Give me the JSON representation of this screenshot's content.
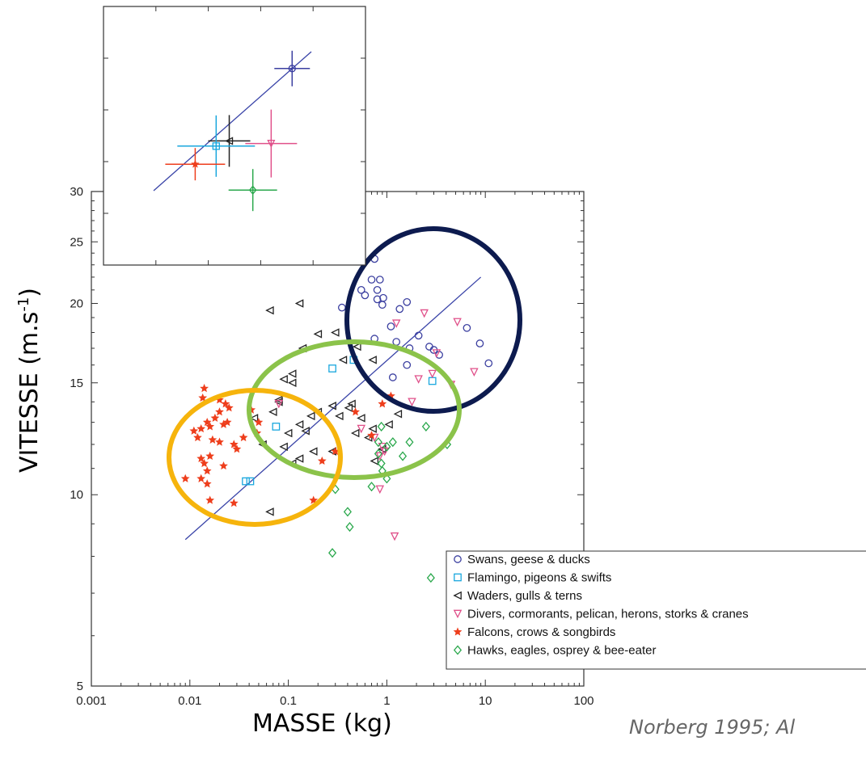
{
  "chart_data": {
    "type": "scatter",
    "xlabel": "MASSE (kg)",
    "ylabel_main": "VITESSE (m.s",
    "ylabel_sup": "-1",
    "ylabel_end": ")",
    "citation": "Norberg 1995; Al",
    "x_scale": "log",
    "y_scale": "log",
    "xlim": [
      0.001,
      100
    ],
    "ylim": [
      5,
      30
    ],
    "x_ticks": [
      {
        "value": 0.001,
        "label": "0.001"
      },
      {
        "value": 0.01,
        "label": "0.01"
      },
      {
        "value": 0.1,
        "label": "0.1"
      },
      {
        "value": 1,
        "label": "1"
      },
      {
        "value": 10,
        "label": "10"
      },
      {
        "value": 100,
        "label": "100"
      }
    ],
    "y_ticks": [
      {
        "value": 5,
        "label": "5"
      },
      {
        "value": 10,
        "label": "10"
      },
      {
        "value": 15,
        "label": "15"
      },
      {
        "value": 20,
        "label": "20"
      },
      {
        "value": 25,
        "label": "25"
      },
      {
        "value": 30,
        "label": "30"
      }
    ],
    "legend_position": "bottom-right",
    "fit_line": {
      "x": [
        0.009,
        9
      ],
      "y": [
        8.5,
        22
      ],
      "color": "#3a44a8"
    },
    "series": [
      {
        "name": "Swans, geese & ducks",
        "marker": "circle",
        "color": "#3b3fa0",
        "points": [
          [
            0.75,
            23.5
          ],
          [
            0.55,
            21
          ],
          [
            0.7,
            21.8
          ],
          [
            0.85,
            21.8
          ],
          [
            0.6,
            20.6
          ],
          [
            0.8,
            20.3
          ],
          [
            0.9,
            19.9
          ],
          [
            0.92,
            20.4
          ],
          [
            0.8,
            21
          ],
          [
            0.35,
            19.7
          ],
          [
            1.35,
            19.6
          ],
          [
            1.6,
            20.1
          ],
          [
            1.1,
            18.4
          ],
          [
            2.1,
            17.8
          ],
          [
            0.75,
            17.6
          ],
          [
            1.25,
            17.4
          ],
          [
            1.7,
            17
          ],
          [
            2.7,
            17.1
          ],
          [
            3.0,
            16.9
          ],
          [
            3.4,
            16.6
          ],
          [
            6.5,
            18.3
          ],
          [
            8.8,
            17.3
          ],
          [
            10.8,
            16.1
          ],
          [
            1.6,
            16
          ],
          [
            1.15,
            15.3
          ]
        ]
      },
      {
        "name": "Flamingo, pigeons & swifts",
        "marker": "square",
        "color": "#19a7de",
        "points": [
          [
            0.28,
            15.8
          ],
          [
            0.46,
            16.3
          ],
          [
            2.9,
            15.1
          ],
          [
            0.075,
            12.8
          ],
          [
            0.037,
            10.5
          ],
          [
            0.041,
            10.5
          ]
        ]
      },
      {
        "name": "Waders, gulls & terns",
        "marker": "triangle-left",
        "color": "#222222",
        "points": [
          [
            0.065,
            19.5
          ],
          [
            0.13,
            20
          ],
          [
            0.2,
            17.9
          ],
          [
            0.14,
            17
          ],
          [
            0.3,
            18
          ],
          [
            0.36,
            16.3
          ],
          [
            0.5,
            17.1
          ],
          [
            0.72,
            16.3
          ],
          [
            0.09,
            15.2
          ],
          [
            0.11,
            15.5
          ],
          [
            0.11,
            15
          ],
          [
            0.045,
            13.2
          ],
          [
            0.055,
            12
          ],
          [
            0.07,
            13.5
          ],
          [
            0.08,
            14
          ],
          [
            0.1,
            12.5
          ],
          [
            0.13,
            12.9
          ],
          [
            0.15,
            12.6
          ],
          [
            0.17,
            13.3
          ],
          [
            0.2,
            13.5
          ],
          [
            0.28,
            13.8
          ],
          [
            0.33,
            13.3
          ],
          [
            0.41,
            13.7
          ],
          [
            0.44,
            13.9
          ],
          [
            0.48,
            12.5
          ],
          [
            0.55,
            13.2
          ],
          [
            0.65,
            12.3
          ],
          [
            0.72,
            12.7
          ],
          [
            0.9,
            11.8
          ],
          [
            1.05,
            12.9
          ],
          [
            1.3,
            13.4
          ],
          [
            0.11,
            11.2
          ],
          [
            0.13,
            11.4
          ],
          [
            0.18,
            11.7
          ],
          [
            0.28,
            11.7
          ],
          [
            0.75,
            11.3
          ],
          [
            0.065,
            9.4
          ],
          [
            0.09,
            11.9
          ],
          [
            0.08,
            14.1
          ]
        ]
      },
      {
        "name": "Divers, cormorants, pelican, herons, storks & cranes",
        "marker": "triangle-down",
        "color": "#e0508a",
        "points": [
          [
            2.4,
            19.3
          ],
          [
            1.25,
            18.6
          ],
          [
            5.2,
            18.7
          ],
          [
            0.55,
            12.7
          ],
          [
            0.08,
            13.9
          ],
          [
            0.75,
            12.3
          ],
          [
            0.9,
            11.9
          ],
          [
            0.85,
            11.5
          ],
          [
            0.85,
            10.2
          ],
          [
            1.8,
            14
          ],
          [
            2.1,
            15.2
          ],
          [
            2.9,
            15.5
          ],
          [
            3.2,
            16.7
          ],
          [
            4.5,
            14.9
          ],
          [
            7.7,
            15.6
          ],
          [
            1.2,
            8.6
          ],
          [
            0.95,
            11.7
          ]
        ]
      },
      {
        "name": "Falcons, crows & songbirds",
        "marker": "star",
        "color": "#ee3e1c",
        "points": [
          [
            0.014,
            14.7
          ],
          [
            0.0135,
            14.2
          ],
          [
            0.02,
            14.1
          ],
          [
            0.023,
            13.9
          ],
          [
            0.025,
            13.7
          ],
          [
            0.02,
            13.5
          ],
          [
            0.018,
            13.2
          ],
          [
            0.015,
            13
          ],
          [
            0.016,
            12.8
          ],
          [
            0.022,
            12.9
          ],
          [
            0.024,
            13
          ],
          [
            0.013,
            12.7
          ],
          [
            0.011,
            12.6
          ],
          [
            0.012,
            12.3
          ],
          [
            0.017,
            12.2
          ],
          [
            0.02,
            12.1
          ],
          [
            0.028,
            12
          ],
          [
            0.035,
            12.3
          ],
          [
            0.042,
            13.6
          ],
          [
            0.05,
            13
          ],
          [
            0.048,
            12.5
          ],
          [
            0.03,
            11.8
          ],
          [
            0.016,
            11.5
          ],
          [
            0.013,
            11.4
          ],
          [
            0.014,
            11.2
          ],
          [
            0.015,
            10.9
          ],
          [
            0.013,
            10.6
          ],
          [
            0.009,
            10.6
          ],
          [
            0.015,
            10.4
          ],
          [
            0.016,
            9.8
          ],
          [
            0.028,
            9.7
          ],
          [
            0.022,
            11.1
          ],
          [
            0.18,
            9.8
          ],
          [
            0.22,
            11.3
          ],
          [
            0.3,
            11.7
          ],
          [
            0.7,
            12.4
          ],
          [
            1.1,
            14.3
          ],
          [
            0.48,
            13.5
          ],
          [
            0.9,
            13.9
          ]
        ]
      },
      {
        "name": "Hawks, eagles, osprey & bee-eater",
        "marker": "diamond",
        "color": "#2aa84c",
        "points": [
          [
            0.88,
            12.8
          ],
          [
            0.82,
            12.1
          ],
          [
            1.0,
            11.9
          ],
          [
            1.15,
            12.1
          ],
          [
            1.45,
            11.5
          ],
          [
            1.7,
            12.1
          ],
          [
            2.5,
            12.8
          ],
          [
            4.1,
            12
          ],
          [
            0.82,
            11.6
          ],
          [
            0.88,
            11.2
          ],
          [
            0.9,
            10.9
          ],
          [
            0.7,
            10.3
          ],
          [
            1.0,
            10.6
          ],
          [
            0.3,
            10.2
          ],
          [
            0.4,
            9.4
          ],
          [
            0.42,
            8.9
          ],
          [
            0.28,
            8.1
          ],
          [
            2.8,
            7.4
          ]
        ]
      }
    ],
    "inset": {
      "points": [
        {
          "name": "Swans, geese & ducks",
          "marker": "circle",
          "color": "#3b3fa0",
          "x": 0.72,
          "y": 0.76
        },
        {
          "name": "Waders, gulls & terns",
          "marker": "triangle-left",
          "color": "#222222",
          "x": 0.48,
          "y": 0.48
        },
        {
          "name": "Flamingo, pigeons & swifts",
          "marker": "square",
          "color": "#19a7de",
          "x": 0.43,
          "y": 0.46
        },
        {
          "name": "Divers, cormorants, pelican, herons, storks & cranes",
          "marker": "triangle-down",
          "color": "#e0508a",
          "x": 0.64,
          "y": 0.47
        },
        {
          "name": "Falcons, crows & songbirds",
          "marker": "star",
          "color": "#ee3e1c",
          "x": 0.35,
          "y": 0.39
        },
        {
          "name": "Hawks, eagles, osprey & bee-eater",
          "marker": "diamond",
          "color": "#2aa84c",
          "x": 0.57,
          "y": 0.29
        }
      ]
    },
    "highlight_ellipses": [
      {
        "color": "#0d1b4f",
        "group": "Swans, geese & ducks"
      },
      {
        "color": "#8bc34a",
        "group": "Waders, gulls & terns"
      },
      {
        "color": "#f6b40c",
        "group": "Falcons, crows & songbirds"
      }
    ]
  }
}
